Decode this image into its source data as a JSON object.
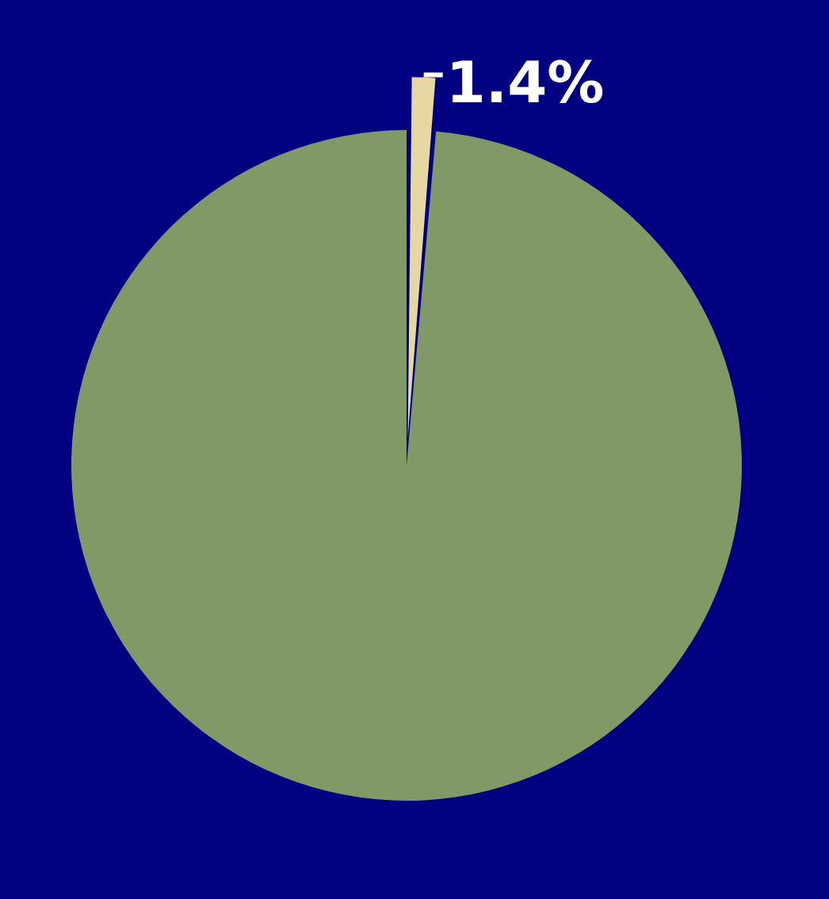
{
  "chart_data": {
    "type": "pie",
    "categories": [
      null,
      null
    ],
    "values": [
      1.4,
      98.6
    ],
    "colors": [
      "#e6d7a3",
      "#819966"
    ],
    "value_labels": [
      "1.4%",
      null
    ],
    "legend": false
  }
}
